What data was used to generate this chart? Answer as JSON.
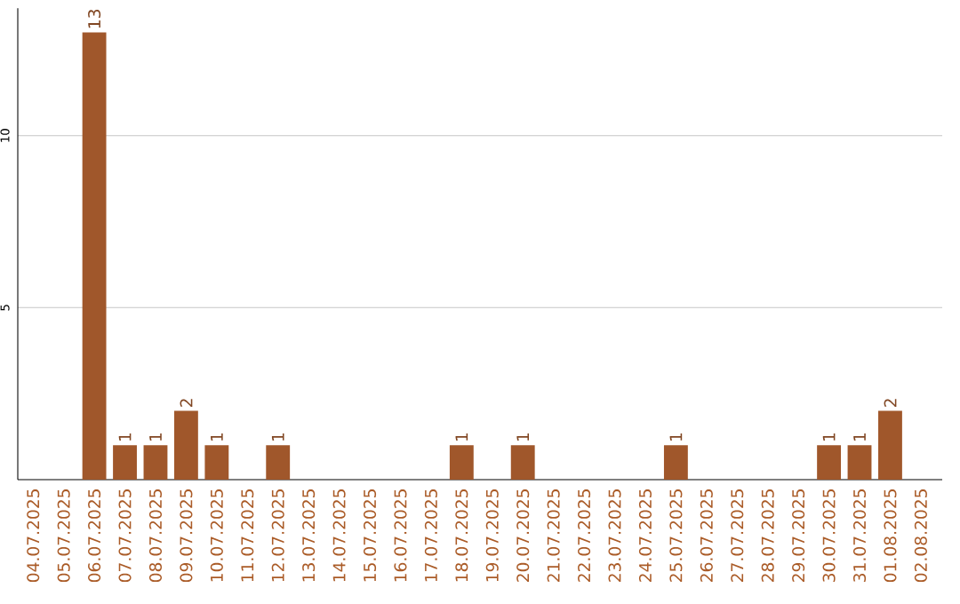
{
  "chart_data": {
    "type": "bar",
    "categories": [
      "04.07.2025",
      "05.07.2025",
      "06.07.2025",
      "07.07.2025",
      "08.07.2025",
      "09.07.2025",
      "10.07.2025",
      "11.07.2025",
      "12.07.2025",
      "13.07.2025",
      "14.07.2025",
      "15.07.2025",
      "16.07.2025",
      "17.07.2025",
      "18.07.2025",
      "19.07.2025",
      "20.07.2025",
      "21.07.2025",
      "22.07.2025",
      "23.07.2025",
      "24.07.2025",
      "25.07.2025",
      "26.07.2025",
      "27.07.2025",
      "28.07.2025",
      "29.07.2025",
      "30.07.2025",
      "31.07.2025",
      "01.08.2025",
      "02.08.2025"
    ],
    "values": [
      0,
      0,
      13,
      1,
      1,
      2,
      1,
      0,
      1,
      0,
      0,
      0,
      0,
      0,
      1,
      0,
      1,
      0,
      0,
      0,
      0,
      1,
      0,
      0,
      0,
      0,
      1,
      1,
      2,
      0
    ],
    "value_labels": [
      null,
      null,
      "13",
      "1",
      "1",
      "2",
      "1",
      null,
      "1",
      null,
      null,
      null,
      null,
      null,
      "1",
      null,
      "1",
      null,
      null,
      null,
      null,
      "1",
      null,
      null,
      null,
      null,
      "1",
      "1",
      "2",
      null
    ],
    "color": "#a0572b",
    "ylim": [
      0,
      13.7
    ],
    "yticks": [
      5,
      10
    ],
    "grid": "y"
  }
}
